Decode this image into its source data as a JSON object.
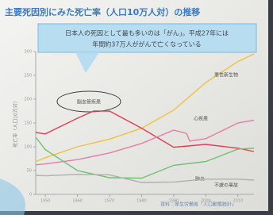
{
  "chart_data": {
    "type": "line",
    "title": "主要死因別にみた死亡率（人口10万人対）の推移",
    "callout": [
      "日本人の死因として最も多いのは「がん」。平成27年には",
      "年間約37万人ががんで亡くなっている"
    ],
    "y_label": "死亡率（人口10万対）",
    "source": "資料：厚生労働省「人口動態統計」",
    "xlim": [
      1947,
      2015
    ],
    "xticks": [
      1950,
      1960,
      1970,
      1980,
      1990,
      2000,
      2010
    ],
    "ylim": [
      0,
      300
    ],
    "yticks": [
      0,
      50,
      100,
      150,
      200,
      250,
      300
    ],
    "series": [
      {
        "name": "悪性新生物",
        "color": "#f0c040",
        "x": [
          1947,
          1950,
          1960,
          1970,
          1980,
          1990,
          2000,
          2010,
          2015
        ],
        "values": [
          69,
          77,
          100,
          116,
          139,
          177,
          235,
          279,
          295
        ]
      },
      {
        "name": "脳血管疾患",
        "color": "#e04050",
        "x": [
          1947,
          1950,
          1960,
          1965,
          1970,
          1980,
          1990,
          2000,
          2010,
          2015
        ],
        "values": [
          130,
          127,
          160,
          175,
          175,
          139,
          99,
          105,
          97,
          90
        ]
      },
      {
        "name": "心疾患",
        "color": "#e87ca8",
        "x": [
          1947,
          1950,
          1960,
          1970,
          1980,
          1990,
          1994,
          1995,
          2000,
          2010,
          2015
        ],
        "values": [
          62,
          64,
          73,
          87,
          107,
          135,
          128,
          112,
          117,
          150,
          156
        ]
      },
      {
        "name": "肺炎",
        "color": "#70c070",
        "x": [
          1947,
          1950,
          1960,
          1970,
          1980,
          1990,
          2000,
          2010,
          2015
        ],
        "values": [
          120,
          94,
          50,
          35,
          34,
          61,
          69,
          95,
          97
        ]
      },
      {
        "name": "不慮の事故",
        "color": "#b0b0b0",
        "x": [
          1947,
          1950,
          1960,
          1970,
          1980,
          1990,
          2000,
          2010,
          2015
        ],
        "values": [
          40,
          39,
          42,
          41,
          25,
          26,
          32,
          32,
          30
        ]
      }
    ]
  }
}
